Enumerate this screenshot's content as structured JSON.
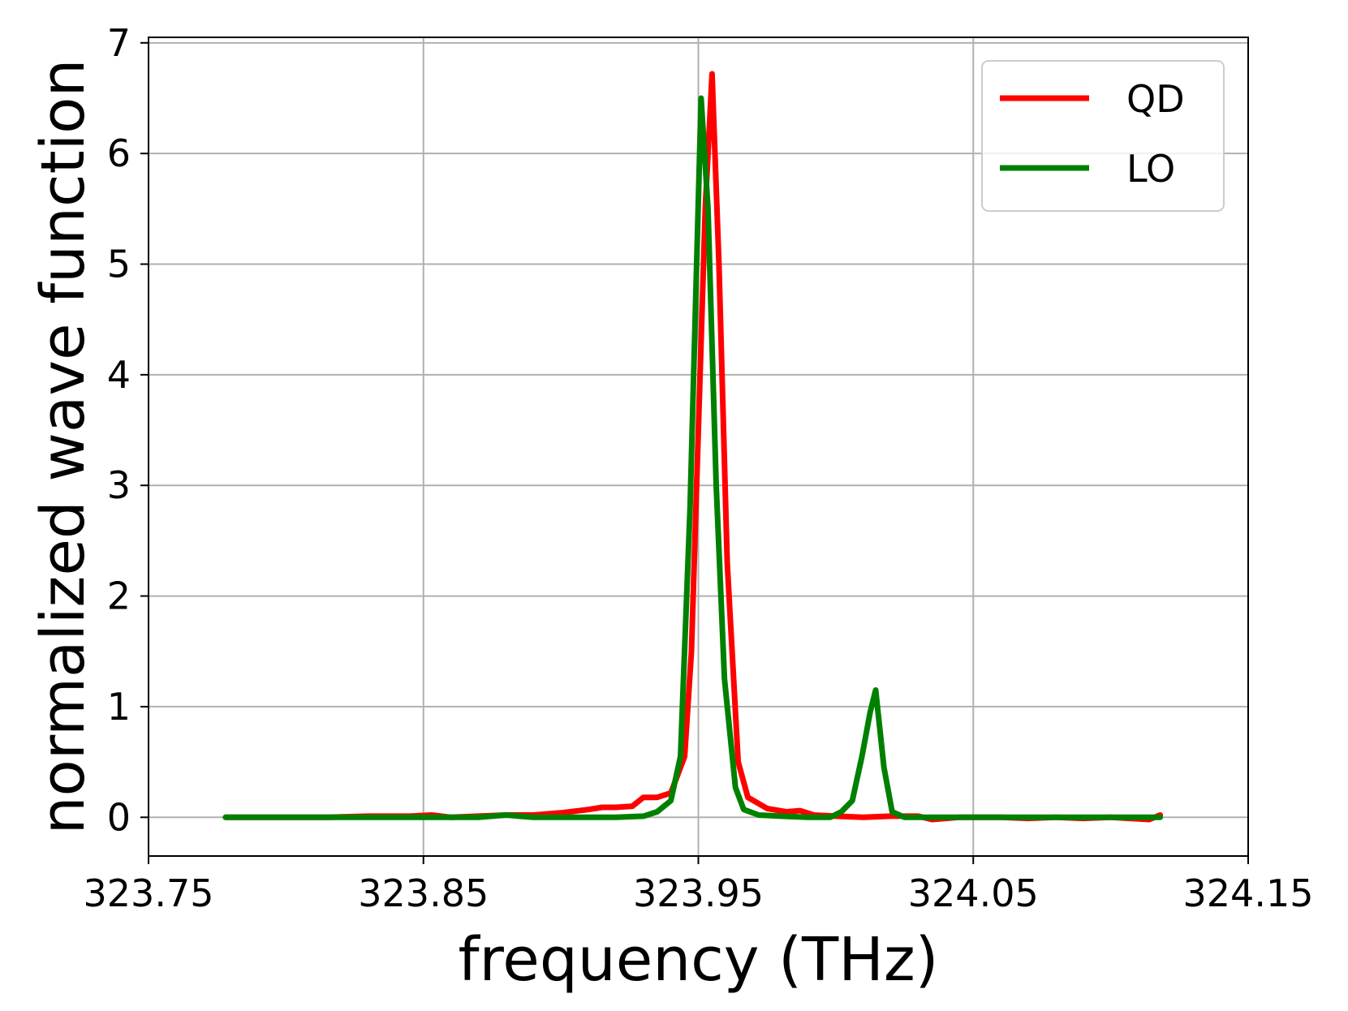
{
  "chart_data": {
    "type": "line",
    "xlabel": "frequency (THz)",
    "ylabel": "normalized wave function",
    "xlim": [
      323.75,
      324.15
    ],
    "ylim": [
      -0.35,
      7.05
    ],
    "x_ticks": [
      323.75,
      323.85,
      323.95,
      324.05,
      324.15
    ],
    "x_tick_labels": [
      "323.75",
      "323.85",
      "323.95",
      "324.05",
      "324.15"
    ],
    "y_ticks": [
      0,
      1,
      2,
      3,
      4,
      5,
      6,
      7
    ],
    "y_tick_labels": [
      "0",
      "1",
      "2",
      "3",
      "4",
      "5",
      "6",
      "7"
    ],
    "grid": true,
    "legend_position": "top-right",
    "series": [
      {
        "name": "QD",
        "color": "#ff0000",
        "points": [
          [
            323.778,
            0.0
          ],
          [
            323.785,
            0.0
          ],
          [
            323.795,
            0.0
          ],
          [
            323.805,
            0.0
          ],
          [
            323.815,
            0.0
          ],
          [
            323.83,
            0.01
          ],
          [
            323.845,
            0.01
          ],
          [
            323.853,
            0.02
          ],
          [
            323.86,
            0.0
          ],
          [
            323.87,
            0.01
          ],
          [
            323.88,
            0.02
          ],
          [
            323.89,
            0.02
          ],
          [
            323.9,
            0.04
          ],
          [
            323.91,
            0.07
          ],
          [
            323.915,
            0.09
          ],
          [
            323.92,
            0.09
          ],
          [
            323.926,
            0.1
          ],
          [
            323.93,
            0.18
          ],
          [
            323.935,
            0.18
          ],
          [
            323.94,
            0.22
          ],
          [
            323.945,
            0.55
          ],
          [
            323.9475,
            1.5
          ],
          [
            323.95,
            3.5
          ],
          [
            323.9525,
            5.5
          ],
          [
            323.955,
            6.72
          ],
          [
            323.9575,
            5.0
          ],
          [
            323.9605,
            2.3
          ],
          [
            323.9645,
            0.5
          ],
          [
            323.968,
            0.18
          ],
          [
            323.975,
            0.08
          ],
          [
            323.982,
            0.05
          ],
          [
            323.987,
            0.06
          ],
          [
            323.992,
            0.02
          ],
          [
            324.0,
            0.01
          ],
          [
            324.01,
            0.0
          ],
          [
            324.02,
            0.01
          ],
          [
            324.03,
            0.01
          ],
          [
            324.035,
            -0.02
          ],
          [
            324.045,
            0.0
          ],
          [
            324.06,
            0.0
          ],
          [
            324.07,
            -0.01
          ],
          [
            324.08,
            0.0
          ],
          [
            324.09,
            -0.01
          ],
          [
            324.1,
            0.0
          ],
          [
            324.114,
            -0.02
          ],
          [
            324.118,
            0.02
          ]
        ]
      },
      {
        "name": "LO",
        "color": "#008000",
        "points": [
          [
            323.778,
            0.0
          ],
          [
            323.79,
            0.0
          ],
          [
            323.8,
            0.0
          ],
          [
            323.81,
            0.0
          ],
          [
            323.82,
            0.0
          ],
          [
            323.83,
            0.0
          ],
          [
            323.84,
            0.0
          ],
          [
            323.85,
            0.0
          ],
          [
            323.86,
            0.0
          ],
          [
            323.87,
            0.0
          ],
          [
            323.88,
            0.02
          ],
          [
            323.89,
            0.0
          ],
          [
            323.9,
            0.0
          ],
          [
            323.91,
            0.0
          ],
          [
            323.92,
            0.0
          ],
          [
            323.93,
            0.01
          ],
          [
            323.935,
            0.05
          ],
          [
            323.94,
            0.15
          ],
          [
            323.9435,
            0.55
          ],
          [
            323.947,
            2.8
          ],
          [
            323.951,
            6.5
          ],
          [
            323.9535,
            5.5
          ],
          [
            323.9565,
            3.0
          ],
          [
            323.9595,
            1.25
          ],
          [
            323.9635,
            0.27
          ],
          [
            323.9665,
            0.07
          ],
          [
            323.972,
            0.02
          ],
          [
            323.98,
            0.01
          ],
          [
            323.99,
            0.0
          ],
          [
            323.998,
            0.0
          ],
          [
            324.002,
            0.05
          ],
          [
            324.006,
            0.15
          ],
          [
            324.0095,
            0.55
          ],
          [
            324.0125,
            0.95
          ],
          [
            324.0145,
            1.15
          ],
          [
            324.0175,
            0.45
          ],
          [
            324.0205,
            0.05
          ],
          [
            324.025,
            0.0
          ],
          [
            324.035,
            0.0
          ],
          [
            324.05,
            0.0
          ],
          [
            324.07,
            0.0
          ],
          [
            324.09,
            0.0
          ],
          [
            324.1,
            0.0
          ],
          [
            324.118,
            0.0
          ]
        ]
      }
    ]
  }
}
